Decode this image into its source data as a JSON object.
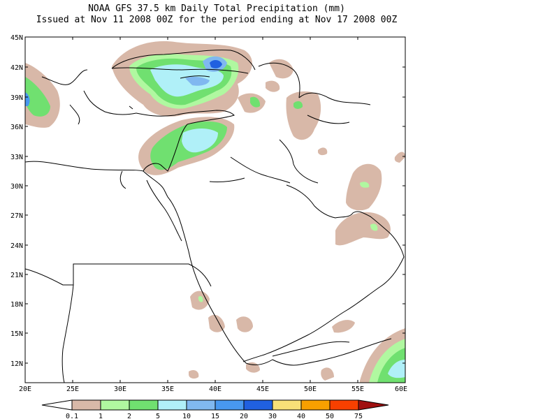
{
  "title": {
    "line1": "NOAA GFS 37.5 km Daily Total Precipitation (mm)",
    "line2": "Issued at Nov 11 2008 00Z for the period ending at Nov 17 2008 00Z"
  },
  "lat_labels": [
    "45N",
    "42N",
    "39N",
    "36N",
    "33N",
    "30N",
    "27N",
    "24N",
    "21N",
    "18N",
    "15N",
    "12N"
  ],
  "lon_labels": [
    "20E",
    "25E",
    "30E",
    "35E",
    "40E",
    "45E",
    "50E",
    "55E",
    "60E"
  ],
  "colorbar": {
    "labels": [
      "0.1",
      "1",
      "2",
      "5",
      "10",
      "15",
      "20",
      "30",
      "40",
      "50",
      "75"
    ],
    "colors": [
      "#ffffff",
      "#d8b8a8",
      "#b0f8a0",
      "#70e070",
      "#b0f0f8",
      "#80b8f0",
      "#4898f0",
      "#2060e0",
      "#f8e078",
      "#f8a000",
      "#f84000",
      "#a01010"
    ]
  },
  "precip_colors": {
    "lt1": "#d8b8a8",
    "c1_2": "#b0f8a0",
    "c2_5": "#70e070",
    "c5_10": "#b0f0f8",
    "c10_15": "#80b8f0",
    "c15_20": "#4898f0",
    "c20_30": "#2060e0"
  }
}
